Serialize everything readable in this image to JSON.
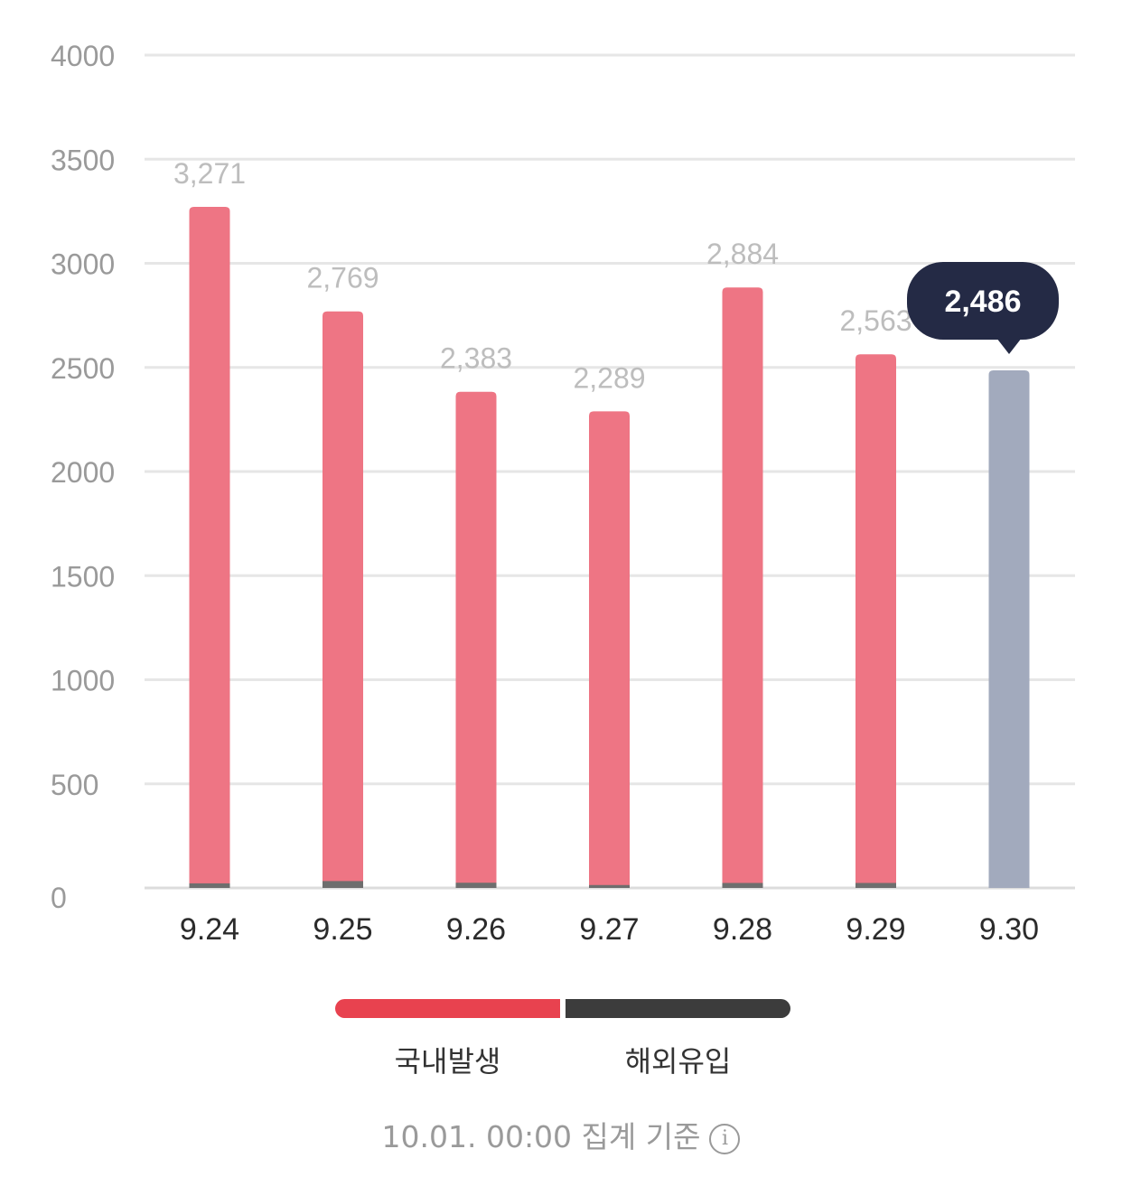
{
  "chart_data": {
    "type": "bar",
    "stacked": true,
    "categories": [
      "9.24",
      "9.25",
      "9.26",
      "9.27",
      "9.28",
      "9.29",
      "9.30"
    ],
    "series": [
      {
        "name": "국내발생",
        "color": "#ee7584",
        "values": [
          3249,
          2736,
          2358,
          2275,
          2860,
          2539,
          2486
        ]
      },
      {
        "name": "해외유입",
        "color": "#6e6e6e",
        "values": [
          22,
          33,
          25,
          14,
          24,
          24,
          0
        ]
      }
    ],
    "total_labels": [
      "3,271",
      "2,769",
      "2,383",
      "2,289",
      "2,884",
      "2,563",
      "2,486"
    ],
    "highlighted_index": 6,
    "highlight_color": "#a2aabd",
    "tooltip": {
      "value": "2,486",
      "background": "#242a45"
    },
    "y_ticks": [
      "0",
      "500",
      "1000",
      "1500",
      "2000",
      "2500",
      "3000",
      "3500",
      "4000"
    ],
    "ylim": [
      0,
      4000
    ],
    "grid": true,
    "title": "",
    "xlabel": "",
    "ylabel": ""
  },
  "legend": {
    "domestic_label": "국내발생",
    "domestic_color": "#e8424f",
    "imported_label": "해외유입",
    "imported_color": "#3c3c3c"
  },
  "footnote": {
    "text": "10.01. 00:00 집계 기준",
    "icon": "info-icon"
  }
}
